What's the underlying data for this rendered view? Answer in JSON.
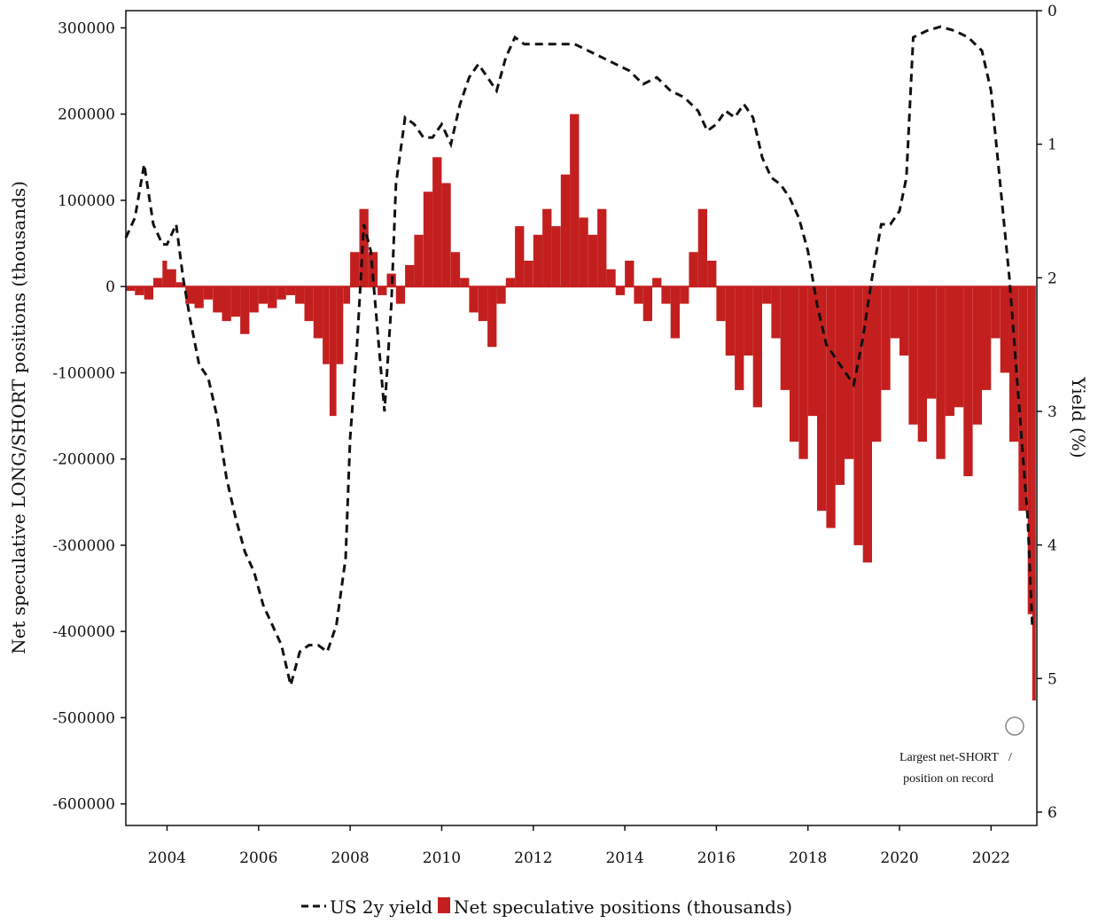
{
  "chart_data": {
    "type": "bar+line",
    "title": "",
    "ylabel": "Net speculative LONG/SHORT positions (thousands)",
    "y2label": "Yield (%)",
    "xlabel": "",
    "x_range": [
      2003.1,
      2023.0
    ],
    "ylim": [
      -625000,
      320000
    ],
    "y2lim": [
      0,
      6.1
    ],
    "y2_inverted": true,
    "y_ticks": [
      300000,
      200000,
      100000,
      0,
      -100000,
      -200000,
      -300000,
      -400000,
      -500000,
      -600000
    ],
    "y_tick_labels": [
      "300000",
      "200000",
      "100000",
      "0",
      "-100000",
      "-200000",
      "-300000",
      "-400000",
      "-500000",
      "-600000"
    ],
    "y2_ticks": [
      0,
      1,
      2,
      3,
      4,
      5,
      6
    ],
    "y2_tick_labels": [
      "0",
      "1",
      "2",
      "3",
      "4",
      "5",
      "6"
    ],
    "x_ticks": [
      2004,
      2006,
      2008,
      2010,
      2012,
      2014,
      2016,
      2018,
      2020,
      2022
    ],
    "x_tick_labels": [
      "2004",
      "2006",
      "2008",
      "2010",
      "2012",
      "2014",
      "2016",
      "2018",
      "2020",
      "2022"
    ],
    "legend_position": "bottom-center",
    "series": [
      {
        "name": "US 2y yield",
        "type": "line",
        "axis": "right",
        "style": "dashed",
        "color": "#111111",
        "x": [
          2003.1,
          2003.3,
          2003.5,
          2003.7,
          2003.9,
          2004.0,
          2004.2,
          2004.35,
          2004.5,
          2004.7,
          2004.9,
          2005.1,
          2005.3,
          2005.5,
          2005.7,
          2005.9,
          2006.1,
          2006.3,
          2006.5,
          2006.7,
          2006.9,
          2007.1,
          2007.3,
          2007.5,
          2007.7,
          2007.9,
          2008.0,
          2008.15,
          2008.3,
          2008.45,
          2008.6,
          2008.75,
          2008.9,
          2009.0,
          2009.2,
          2009.4,
          2009.6,
          2009.8,
          2010.0,
          2010.2,
          2010.4,
          2010.6,
          2010.8,
          2011.0,
          2011.2,
          2011.4,
          2011.6,
          2011.8,
          2012.0,
          2012.3,
          2012.6,
          2012.9,
          2013.2,
          2013.5,
          2013.8,
          2014.1,
          2014.4,
          2014.7,
          2015.0,
          2015.3,
          2015.6,
          2015.8,
          2016.0,
          2016.2,
          2016.4,
          2016.6,
          2016.8,
          2017.0,
          2017.2,
          2017.4,
          2017.6,
          2017.8,
          2018.0,
          2018.2,
          2018.4,
          2018.6,
          2018.8,
          2019.0,
          2019.2,
          2019.4,
          2019.6,
          2019.8,
          2020.0,
          2020.15,
          2020.3,
          2020.6,
          2020.9,
          2021.2,
          2021.5,
          2021.8,
          2022.0,
          2022.2,
          2022.4,
          2022.6,
          2022.8,
          2022.9
        ],
        "values": [
          1.7,
          1.55,
          1.15,
          1.6,
          1.75,
          1.75,
          1.6,
          2.0,
          2.3,
          2.65,
          2.75,
          3.05,
          3.5,
          3.8,
          4.05,
          4.2,
          4.45,
          4.6,
          4.75,
          5.05,
          4.8,
          4.75,
          4.75,
          4.8,
          4.6,
          4.1,
          3.2,
          2.5,
          1.6,
          1.8,
          2.4,
          3.0,
          2.2,
          1.3,
          0.8,
          0.85,
          0.95,
          0.95,
          0.85,
          1.0,
          0.7,
          0.5,
          0.4,
          0.5,
          0.6,
          0.35,
          0.2,
          0.25,
          0.25,
          0.25,
          0.25,
          0.25,
          0.3,
          0.35,
          0.4,
          0.45,
          0.55,
          0.5,
          0.6,
          0.65,
          0.75,
          0.9,
          0.85,
          0.75,
          0.8,
          0.7,
          0.8,
          1.1,
          1.25,
          1.3,
          1.4,
          1.55,
          1.8,
          2.2,
          2.5,
          2.6,
          2.7,
          2.8,
          2.45,
          2.0,
          1.6,
          1.6,
          1.5,
          1.25,
          0.2,
          0.15,
          0.12,
          0.15,
          0.2,
          0.3,
          0.6,
          1.3,
          2.0,
          2.9,
          3.8,
          4.6
        ]
      },
      {
        "name": "Net speculative positions (thousands)",
        "type": "bar",
        "axis": "left",
        "color": "#c41f1f",
        "x": [
          2003.1,
          2003.3,
          2003.5,
          2003.7,
          2003.9,
          2004.0,
          2004.2,
          2004.4,
          2004.6,
          2004.8,
          2005.0,
          2005.2,
          2005.4,
          2005.6,
          2005.8,
          2006.0,
          2006.2,
          2006.4,
          2006.6,
          2006.8,
          2007.0,
          2007.2,
          2007.4,
          2007.55,
          2007.7,
          2007.85,
          2008.0,
          2008.2,
          2008.4,
          2008.6,
          2008.8,
          2009.0,
          2009.2,
          2009.4,
          2009.6,
          2009.8,
          2010.0,
          2010.2,
          2010.4,
          2010.6,
          2010.8,
          2011.0,
          2011.2,
          2011.4,
          2011.6,
          2011.8,
          2012.0,
          2012.2,
          2012.4,
          2012.6,
          2012.8,
          2013.0,
          2013.2,
          2013.4,
          2013.6,
          2013.8,
          2014.0,
          2014.2,
          2014.4,
          2014.6,
          2014.8,
          2015.0,
          2015.2,
          2015.4,
          2015.6,
          2015.8,
          2016.0,
          2016.2,
          2016.4,
          2016.6,
          2016.8,
          2017.0,
          2017.2,
          2017.4,
          2017.6,
          2017.8,
          2018.0,
          2018.2,
          2018.4,
          2018.6,
          2018.8,
          2019.0,
          2019.2,
          2019.4,
          2019.6,
          2019.8,
          2020.0,
          2020.2,
          2020.4,
          2020.6,
          2020.8,
          2021.0,
          2021.2,
          2021.4,
          2021.6,
          2021.8,
          2022.0,
          2022.2,
          2022.4,
          2022.6,
          2022.8,
          2022.9
        ],
        "values": [
          -5000,
          -10000,
          -15000,
          10000,
          30000,
          20000,
          5000,
          -20000,
          -25000,
          -15000,
          -30000,
          -40000,
          -35000,
          -55000,
          -30000,
          -20000,
          -25000,
          -15000,
          -10000,
          -20000,
          -40000,
          -60000,
          -90000,
          -150000,
          -90000,
          -20000,
          40000,
          90000,
          40000,
          -10000,
          15000,
          -20000,
          25000,
          60000,
          110000,
          150000,
          120000,
          40000,
          10000,
          -30000,
          -40000,
          -70000,
          -20000,
          10000,
          70000,
          30000,
          60000,
          90000,
          70000,
          130000,
          200000,
          80000,
          60000,
          90000,
          20000,
          -10000,
          30000,
          -20000,
          -40000,
          10000,
          -20000,
          -60000,
          -20000,
          40000,
          90000,
          30000,
          -40000,
          -80000,
          -120000,
          -80000,
          -140000,
          -20000,
          -60000,
          -120000,
          -180000,
          -200000,
          -150000,
          -260000,
          -280000,
          -230000,
          -200000,
          -300000,
          -320000,
          -180000,
          -120000,
          -60000,
          -80000,
          -160000,
          -180000,
          -130000,
          -200000,
          -150000,
          -140000,
          -220000,
          -160000,
          -120000,
          -60000,
          -100000,
          -180000,
          -260000,
          -380000,
          -480000
        ]
      }
    ]
  },
  "annotation": {
    "line1": "Largest net-SHORT",
    "line2": "position on record",
    "slash": "/"
  },
  "legend": {
    "line_label": "US 2y yield",
    "bar_label": "Net speculative positions (thousands)"
  }
}
